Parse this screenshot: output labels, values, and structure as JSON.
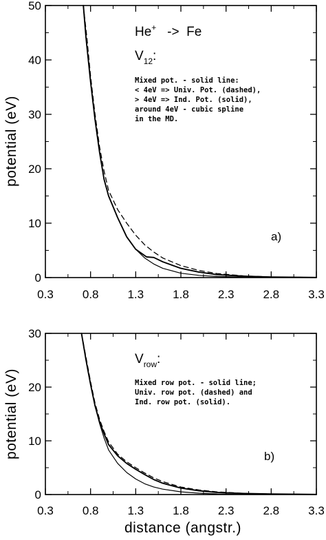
{
  "chart_data": [
    {
      "type": "line",
      "panel_label": "a)",
      "title_line1": {
        "base": "He",
        "sup": "+",
        "rest": "   ->  Fe"
      },
      "title_line2": {
        "base": "V",
        "sub": "12",
        "rest": ":"
      },
      "annotation": [
        "Mixed pot. - solid line:",
        "< 4eV => Univ. Pot. (dashed),",
        "> 4eV => Ind. Pot. (solid),",
        "around 4eV - cubic spline",
        "in the MD."
      ],
      "xlabel": "",
      "ylabel": "potential  (eV)",
      "xlim": [
        0.3,
        3.3
      ],
      "ylim": [
        0,
        50
      ],
      "xticks": [
        "0.3",
        "0.8",
        "1.3",
        "1.8",
        "2.3",
        "2.8",
        "3.3"
      ],
      "yticks": [
        "0",
        "10",
        "20",
        "30",
        "40",
        "50"
      ],
      "series": [
        {
          "style": "solid",
          "values_xy": [
            [
              0.72,
              50
            ],
            [
              0.75,
              44
            ],
            [
              0.8,
              36
            ],
            [
              0.85,
              29
            ],
            [
              0.9,
              23
            ],
            [
              0.95,
              18
            ],
            [
              1.0,
              15
            ],
            [
              1.05,
              13
            ],
            [
              1.1,
              11
            ],
            [
              1.2,
              7.5
            ],
            [
              1.3,
              5.2
            ],
            [
              1.42,
              3.8
            ],
            [
              1.5,
              3.7
            ],
            [
              1.6,
              2.9
            ],
            [
              1.8,
              1.7
            ],
            [
              2.0,
              1.0
            ],
            [
              2.2,
              0.55
            ],
            [
              2.5,
              0.25
            ],
            [
              2.8,
              0.1
            ],
            [
              3.3,
              0.02
            ]
          ]
        },
        {
          "style": "dashed",
          "values_xy": [
            [
              0.72,
              50
            ],
            [
              0.76,
              44
            ],
            [
              0.8,
              37
            ],
            [
              0.85,
              30
            ],
            [
              0.9,
              24
            ],
            [
              0.95,
              19.5
            ],
            [
              1.0,
              16
            ],
            [
              1.1,
              12.5
            ],
            [
              1.2,
              10
            ],
            [
              1.3,
              7.8
            ],
            [
              1.4,
              6
            ],
            [
              1.5,
              4.7
            ],
            [
              1.6,
              3.6
            ],
            [
              1.8,
              2.2
            ],
            [
              2.0,
              1.3
            ],
            [
              2.2,
              0.75
            ],
            [
              2.5,
              0.3
            ],
            [
              2.8,
              0.12
            ],
            [
              3.3,
              0.02
            ]
          ]
        },
        {
          "style": "solid",
          "values_xy": [
            [
              0.72,
              50
            ],
            [
              0.75,
              44
            ],
            [
              0.8,
              36
            ],
            [
              0.85,
              29
            ],
            [
              0.9,
              23
            ],
            [
              0.95,
              18
            ],
            [
              1.0,
              15
            ],
            [
              1.05,
              13
            ],
            [
              1.1,
              11
            ],
            [
              1.2,
              7.5
            ],
            [
              1.3,
              5.2
            ],
            [
              1.4,
              3.6
            ],
            [
              1.5,
              2.5
            ],
            [
              1.6,
              1.7
            ],
            [
              1.8,
              0.8
            ],
            [
              2.0,
              0.4
            ],
            [
              2.2,
              0.2
            ],
            [
              2.5,
              0.07
            ],
            [
              2.8,
              0.03
            ],
            [
              3.3,
              0.0
            ]
          ]
        }
      ]
    },
    {
      "type": "line",
      "panel_label": "b)",
      "title_line1": {
        "base": "V",
        "sub": "row",
        "rest": ":"
      },
      "annotation": [
        "Mixed row pot. - solid line;",
        "Univ. row pot. (dashed) and",
        "Ind. row pot. (solid)."
      ],
      "xlabel": "distance  (angstr.)",
      "ylabel": "potential  (eV)",
      "xlim": [
        0.3,
        3.3
      ],
      "ylim": [
        0,
        30
      ],
      "xticks": [
        "0.3",
        "0.8",
        "1.3",
        "1.8",
        "2.3",
        "2.8",
        "3.3"
      ],
      "yticks": [
        "0",
        "10",
        "20",
        "30"
      ],
      "series": [
        {
          "style": "solid",
          "values_xy": [
            [
              0.7,
              30
            ],
            [
              0.75,
              25
            ],
            [
              0.8,
              20.5
            ],
            [
              0.85,
              16.5
            ],
            [
              0.9,
              13.5
            ],
            [
              0.95,
              11.3
            ],
            [
              1.0,
              9.3
            ],
            [
              1.1,
              7.2
            ],
            [
              1.2,
              5.8
            ],
            [
              1.3,
              4.7
            ],
            [
              1.4,
              3.7
            ],
            [
              1.5,
              2.8
            ],
            [
              1.6,
              2.1
            ],
            [
              1.8,
              1.2
            ],
            [
              2.0,
              0.7
            ],
            [
              2.2,
              0.4
            ],
            [
              2.5,
              0.2
            ],
            [
              2.8,
              0.1
            ],
            [
              3.3,
              0.02
            ]
          ]
        },
        {
          "style": "dashed",
          "values_xy": [
            [
              0.7,
              30
            ],
            [
              0.75,
              25.5
            ],
            [
              0.8,
              21
            ],
            [
              0.85,
              17
            ],
            [
              0.9,
              14
            ],
            [
              0.95,
              11.7
            ],
            [
              1.0,
              9.8
            ],
            [
              1.1,
              7.5
            ],
            [
              1.2,
              6.1
            ],
            [
              1.3,
              5
            ],
            [
              1.4,
              4
            ],
            [
              1.5,
              3.1
            ],
            [
              1.6,
              2.4
            ],
            [
              1.8,
              1.4
            ],
            [
              2.0,
              0.85
            ],
            [
              2.2,
              0.5
            ],
            [
              2.5,
              0.22
            ],
            [
              2.8,
              0.1
            ],
            [
              3.3,
              0.02
            ]
          ]
        },
        {
          "style": "solid",
          "values_xy": [
            [
              0.7,
              30
            ],
            [
              0.75,
              25
            ],
            [
              0.8,
              20.5
            ],
            [
              0.85,
              16.5
            ],
            [
              0.9,
              13.2
            ],
            [
              0.95,
              10.5
            ],
            [
              1.0,
              8.3
            ],
            [
              1.1,
              5.8
            ],
            [
              1.2,
              4.1
            ],
            [
              1.3,
              2.9
            ],
            [
              1.4,
              2.0
            ],
            [
              1.5,
              1.4
            ],
            [
              1.6,
              1.0
            ],
            [
              1.8,
              0.5
            ],
            [
              2.0,
              0.25
            ],
            [
              2.2,
              0.12
            ],
            [
              2.5,
              0.05
            ],
            [
              2.8,
              0.02
            ],
            [
              3.3,
              0.0
            ]
          ]
        }
      ]
    }
  ]
}
